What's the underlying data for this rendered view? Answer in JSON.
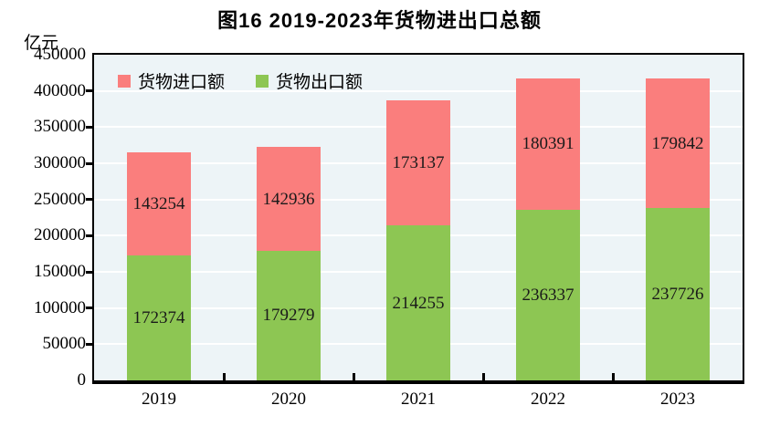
{
  "figure": {
    "title": "图16  2019-2023年货物进出口总额",
    "y_unit": "亿元"
  },
  "legend": {
    "items": [
      {
        "label": "货物进口额",
        "color": "#fa7e7d"
      },
      {
        "label": "货物出口额",
        "color": "#8dc653"
      }
    ]
  },
  "chart_data": {
    "type": "bar",
    "stacked": true,
    "title": "图16  2019-2023年货物进出口总额",
    "ylabel": "亿元",
    "xlabel": "",
    "categories": [
      "2019",
      "2020",
      "2021",
      "2022",
      "2023"
    ],
    "series": [
      {
        "name": "货物出口额",
        "stack_position": "bottom",
        "color": "#8dc653",
        "values": [
          172374,
          179279,
          214255,
          236337,
          237726
        ]
      },
      {
        "name": "货物进口额",
        "stack_position": "top",
        "color": "#fa7e7d",
        "values": [
          143254,
          142936,
          173137,
          180391,
          179842
        ]
      }
    ],
    "totals": [
      315628,
      322215,
      387392,
      416728,
      417568
    ],
    "ylim": [
      0,
      450000
    ],
    "ytick_step": 50000,
    "grid": true,
    "gridline_color": "#ffffff",
    "plot_background": "#edf4f7",
    "legend_position": "top-left-inside"
  }
}
